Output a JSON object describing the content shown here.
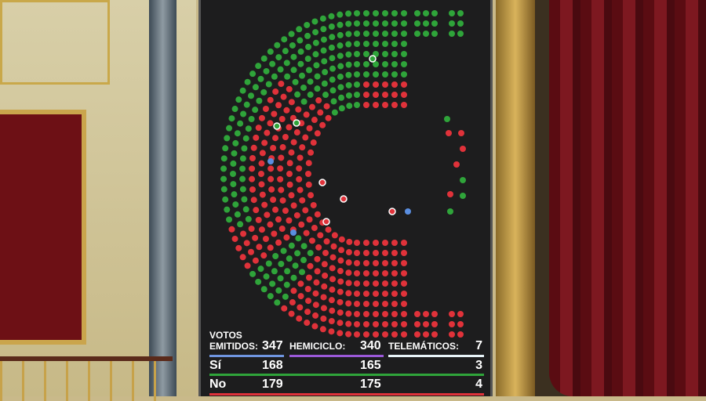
{
  "colors": {
    "si": "#2fa43a",
    "no": "#e0323a",
    "abstention": "#ffffff",
    "telematic": "#5a8ee0",
    "background": "#1d1d1e"
  },
  "results": {
    "votos_label": "VOTOS",
    "emitidos_label": "EMITIDOS:",
    "emitidos": "347",
    "hemiciclo_label": "HEMICICLO:",
    "hemiciclo": "340",
    "telematicos_label": "TELEMÁTICOS:",
    "telematicos": "7",
    "si_label": "Sí",
    "si_total": "168",
    "si_hemiciclo": "165",
    "si_telematicos": "3",
    "no_label": "No",
    "no_total": "179",
    "no_hemiciclo": "175",
    "no_telematicos": "4"
  }
}
